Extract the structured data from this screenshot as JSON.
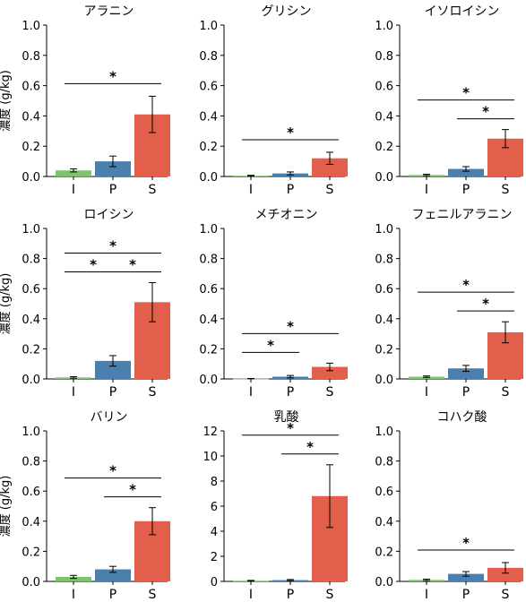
{
  "figure": {
    "ylabel": "濃度 (g/kg)",
    "colors": {
      "I": "#7ec46f",
      "P": "#4a7fae",
      "S": "#e25f4b",
      "axis": "#000000"
    }
  },
  "chart_data": [
    {
      "type": "bar",
      "title": "アラニン",
      "categories": [
        "I",
        "P",
        "S"
      ],
      "values": [
        0.04,
        0.1,
        0.41
      ],
      "errors": [
        0.01,
        0.035,
        0.12
      ],
      "ylim": [
        0,
        1.0
      ],
      "yticks": [
        "0.0",
        "0.2",
        "0.4",
        "0.6",
        "0.8",
        "1.0"
      ],
      "ylabel": "濃度 (g/kg)",
      "significance": [
        {
          "from": "I",
          "to": "S",
          "label": "*"
        }
      ]
    },
    {
      "type": "bar",
      "title": "グリシン",
      "categories": [
        "I",
        "P",
        "S"
      ],
      "values": [
        0.005,
        0.02,
        0.12
      ],
      "errors": [
        0.003,
        0.01,
        0.04
      ],
      "ylim": [
        0,
        1.0
      ],
      "yticks": [
        "0.0",
        "0.2",
        "0.4",
        "0.6",
        "0.8",
        "1.0"
      ],
      "ylabel": "",
      "significance": [
        {
          "from": "I",
          "to": "S",
          "label": "*"
        }
      ]
    },
    {
      "type": "bar",
      "title": "イソロイシン",
      "categories": [
        "I",
        "P",
        "S"
      ],
      "values": [
        0.01,
        0.05,
        0.25
      ],
      "errors": [
        0.005,
        0.015,
        0.06
      ],
      "ylim": [
        0,
        1.0
      ],
      "yticks": [
        "0.0",
        "0.2",
        "0.4",
        "0.6",
        "0.8",
        "1.0"
      ],
      "ylabel": "",
      "significance": [
        {
          "from": "I",
          "to": "S",
          "label": "*"
        },
        {
          "from": "P",
          "to": "S",
          "label": "*"
        }
      ]
    },
    {
      "type": "bar",
      "title": "ロイシン",
      "categories": [
        "I",
        "P",
        "S"
      ],
      "values": [
        0.01,
        0.12,
        0.51
      ],
      "errors": [
        0.005,
        0.035,
        0.13
      ],
      "ylim": [
        0,
        1.0
      ],
      "yticks": [
        "0.0",
        "0.2",
        "0.4",
        "0.6",
        "0.8",
        "1.0"
      ],
      "ylabel": "濃度 (g/kg)",
      "significance": [
        {
          "from": "I",
          "to": "S",
          "label": "*"
        },
        {
          "from": "I",
          "to": "P",
          "label": "*"
        },
        {
          "from": "P",
          "to": "S",
          "label": "*"
        }
      ]
    },
    {
      "type": "bar",
      "title": "メチオニン",
      "categories": [
        "I",
        "P",
        "S"
      ],
      "values": [
        0.002,
        0.015,
        0.08
      ],
      "errors": [
        0.001,
        0.008,
        0.025
      ],
      "ylim": [
        0,
        1.0
      ],
      "yticks": [
        "0.0",
        "0.2",
        "0.4",
        "0.6",
        "0.8",
        "1.0"
      ],
      "ylabel": "",
      "significance": [
        {
          "from": "I",
          "to": "S",
          "label": "*"
        },
        {
          "from": "I",
          "to": "P",
          "label": "*"
        }
      ]
    },
    {
      "type": "bar",
      "title": "フェニルアラニン",
      "categories": [
        "I",
        "P",
        "S"
      ],
      "values": [
        0.015,
        0.07,
        0.31
      ],
      "errors": [
        0.005,
        0.02,
        0.07
      ],
      "ylim": [
        0,
        1.0
      ],
      "yticks": [
        "0.0",
        "0.2",
        "0.4",
        "0.6",
        "0.8",
        "1.0"
      ],
      "ylabel": "",
      "significance": [
        {
          "from": "I",
          "to": "S",
          "label": "*"
        },
        {
          "from": "P",
          "to": "S",
          "label": "*"
        }
      ]
    },
    {
      "type": "bar",
      "title": "バリン",
      "categories": [
        "I",
        "P",
        "S"
      ],
      "values": [
        0.03,
        0.08,
        0.4
      ],
      "errors": [
        0.01,
        0.02,
        0.09
      ],
      "ylim": [
        0,
        1.0
      ],
      "yticks": [
        "0.0",
        "0.2",
        "0.4",
        "0.6",
        "0.8",
        "1.0"
      ],
      "ylabel": "濃度 (g/kg)",
      "significance": [
        {
          "from": "I",
          "to": "S",
          "label": "*"
        },
        {
          "from": "P",
          "to": "S",
          "label": "*"
        }
      ]
    },
    {
      "type": "bar",
      "title": "乳酸",
      "categories": [
        "I",
        "P",
        "S"
      ],
      "values": [
        0.05,
        0.1,
        6.8
      ],
      "errors": [
        0.03,
        0.05,
        2.5
      ],
      "ylim": [
        0,
        12
      ],
      "yticks": [
        "0",
        "2",
        "4",
        "6",
        "8",
        "10",
        "12"
      ],
      "ylabel": "",
      "significance": [
        {
          "from": "I",
          "to": "S",
          "label": "*"
        },
        {
          "from": "P",
          "to": "S",
          "label": "*"
        }
      ]
    },
    {
      "type": "bar",
      "title": "コハク酸",
      "categories": [
        "I",
        "P",
        "S"
      ],
      "values": [
        0.01,
        0.05,
        0.09
      ],
      "errors": [
        0.005,
        0.015,
        0.035
      ],
      "ylim": [
        0,
        1.0
      ],
      "yticks": [
        "0.0",
        "0.2",
        "0.4",
        "0.6",
        "0.8",
        "1.0"
      ],
      "ylabel": "",
      "significance": [
        {
          "from": "I",
          "to": "S",
          "label": "*"
        }
      ]
    }
  ]
}
